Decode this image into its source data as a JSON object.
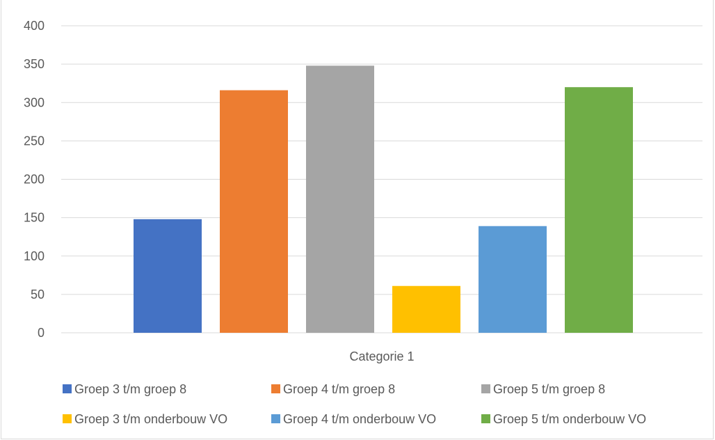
{
  "chart_data": {
    "type": "bar",
    "title": "",
    "categories": [
      "Categorie 1"
    ],
    "series": [
      {
        "name": "Groep 3 t/m groep 8",
        "values": [
          148
        ],
        "color": "#4472c4"
      },
      {
        "name": "Groep 4 t/m groep 8",
        "values": [
          316
        ],
        "color": "#ed7d31"
      },
      {
        "name": "Groep 5 t/m groep 8",
        "values": [
          348
        ],
        "color": "#a5a5a5"
      },
      {
        "name": "Groep 3 t/m onderbouw VO",
        "values": [
          61
        ],
        "color": "#ffc000"
      },
      {
        "name": "Groep 4 t/m onderbouw VO",
        "values": [
          139
        ],
        "color": "#5b9bd5"
      },
      {
        "name": "Groep 5 t/m onderbouw VO",
        "values": [
          320
        ],
        "color": "#70ad47"
      }
    ],
    "xlabel": "",
    "ylabel": "",
    "ylim": [
      0,
      400
    ],
    "yticks": [
      0,
      50,
      100,
      150,
      200,
      250,
      300,
      350,
      400
    ],
    "grid": true,
    "legend_position": "bottom"
  }
}
